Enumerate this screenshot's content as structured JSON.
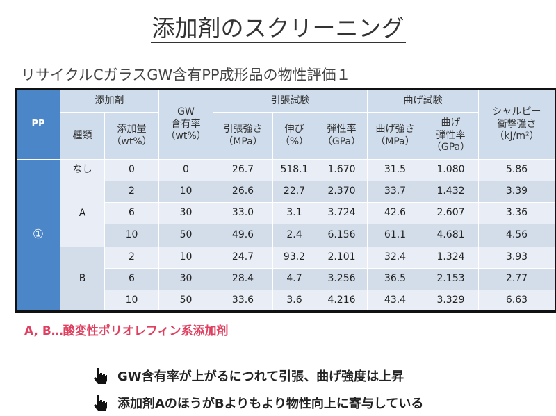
{
  "title": "添加剤のスクリーニング",
  "subtitle": "リサイクルCガラスGW含有PP成形品の物性評価１",
  "table": {
    "pp_header": "PP",
    "additive_group": "添加剤",
    "kind": "種類",
    "amount": "添加量",
    "amount_unit": "（wt%）",
    "gw_l1": "GW",
    "gw_l2": "含有率",
    "gw_unit": "（wt%）",
    "tensile_group": "引張試験",
    "tensile_strength": "引張強さ",
    "tensile_strength_unit": "（MPa）",
    "elongation": "伸び",
    "elongation_unit": "（%）",
    "tensile_modulus": "弾性率",
    "tensile_modulus_unit": "（GPa）",
    "bending_group": "曲げ試験",
    "bending_strength": "曲げ強さ",
    "bending_strength_unit": "（MPa）",
    "bending_modulus_l1": "曲げ",
    "bending_modulus_l2": "弾性率",
    "bending_modulus_unit": "（GPa）",
    "charpy_l1": "シャルピー",
    "charpy_l2": "衝撃強さ",
    "charpy_unit": "（kJ/m²）",
    "pp_value": "①",
    "none_label": "なし",
    "rows": [
      {
        "amount": "0",
        "gw": "0",
        "ts": "26.7",
        "el": "518.1",
        "tm": "1.670",
        "bs": "31.5",
        "bm": "1.080",
        "ch": "5.86"
      },
      {
        "kind": "A",
        "amount": "2",
        "gw": "10",
        "ts": "26.6",
        "el": "22.7",
        "tm": "2.370",
        "bs": "33.7",
        "bm": "1.432",
        "ch": "3.39"
      },
      {
        "amount": "6",
        "gw": "30",
        "ts": "33.0",
        "el": "3.1",
        "tm": "3.724",
        "bs": "42.6",
        "bm": "2.607",
        "ch": "3.36"
      },
      {
        "amount": "10",
        "gw": "50",
        "ts": "49.6",
        "el": "2.4",
        "tm": "6.156",
        "bs": "61.1",
        "bm": "4.681",
        "ch": "4.56"
      },
      {
        "kind": "B",
        "amount": "2",
        "gw": "10",
        "ts": "24.7",
        "el": "93.2",
        "tm": "2.101",
        "bs": "32.4",
        "bm": "1.324",
        "ch": "3.93"
      },
      {
        "amount": "6",
        "gw": "30",
        "ts": "28.4",
        "el": "4.7",
        "tm": "3.256",
        "bs": "36.5",
        "bm": "2.153",
        "ch": "2.77"
      },
      {
        "amount": "10",
        "gw": "50",
        "ts": "33.6",
        "el": "3.6",
        "tm": "4.216",
        "bs": "43.4",
        "bm": "3.329",
        "ch": "6.63"
      }
    ]
  },
  "note": "A, B…酸変性ポリオレフィン系添加剤",
  "bullets": [
    "GW含有率が上がるにつれて引張、曲げ強度は上昇",
    "添加剤AのほうがBよりもより物性向上に寄与している"
  ],
  "icons": {
    "bullet": "pointing-hand-icon"
  },
  "colors": {
    "pp_column": "#4a86c8",
    "header": "#cfdceb",
    "note": "#e04060"
  }
}
